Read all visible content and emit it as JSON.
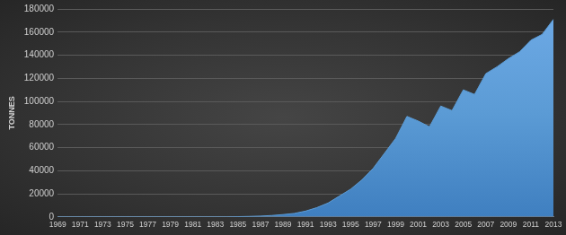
{
  "chart_data": {
    "type": "area",
    "ylabel": "TONNES",
    "categories": [
      "1969",
      null,
      "1971",
      null,
      "1973",
      null,
      "1975",
      null,
      "1977",
      null,
      "1979",
      null,
      "1981",
      null,
      "1983",
      null,
      "1985",
      null,
      "1987",
      null,
      "1989",
      null,
      "1991",
      null,
      "1993",
      null,
      "1995",
      null,
      "1997",
      null,
      "1999",
      null,
      "2001",
      null,
      "2003",
      null,
      "2005",
      null,
      "2007",
      null,
      "2009",
      null,
      "2011",
      null,
      "2013"
    ],
    "values": [
      0,
      0,
      0,
      0,
      0,
      0,
      0,
      0,
      0,
      0,
      0,
      0,
      0,
      0,
      0,
      0,
      200,
      400,
      700,
      1200,
      2000,
      3000,
      5000,
      8000,
      12000,
      18000,
      24000,
      32000,
      42000,
      55000,
      68000,
      87000,
      83000,
      78000,
      96000,
      92000,
      110000,
      106000,
      124000,
      130000,
      137000,
      143000,
      153000,
      158000,
      171000
    ],
    "color": "#5b9bd5",
    "ylim": [
      0,
      180000
    ],
    "yticks": [
      0,
      20000,
      40000,
      60000,
      80000,
      100000,
      120000,
      140000,
      160000,
      180000
    ],
    "grid": true
  }
}
